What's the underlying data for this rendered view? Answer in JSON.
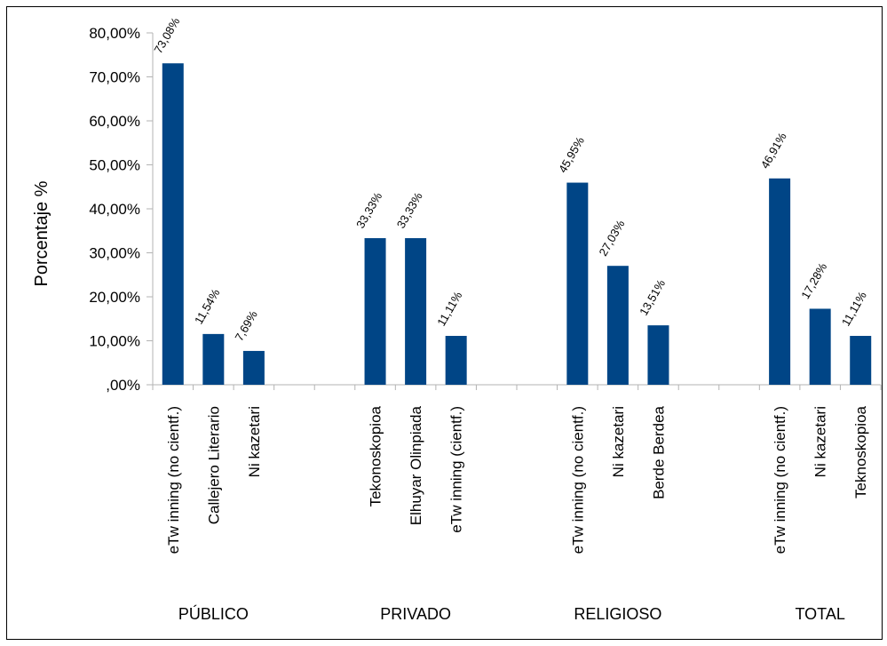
{
  "chart_data": {
    "type": "bar",
    "title": "",
    "xlabel": "",
    "ylabel": "Porcentaje %",
    "ylim": [
      0,
      80
    ],
    "yticks": [
      "80,00%",
      "70,00%",
      "60,00%",
      "50,00%",
      "40,00%",
      "30,00%",
      "20,00%",
      "10,00%",
      ",00%"
    ],
    "legend": "none",
    "grid": false,
    "bar_color": "#004586",
    "groups": [
      {
        "name": "PÚBLICO",
        "categories": [
          "eTw inning (no cientf.)",
          "Callejero Literario",
          "Ni kazetari"
        ],
        "values": [
          73.08,
          11.54,
          7.69
        ],
        "labels": [
          "73,08%",
          "11,54%",
          "7,69%"
        ]
      },
      {
        "name": "PRIVADO",
        "categories": [
          "Tekonoskopioa",
          "Elhuyar Olinpiada",
          "eTw inning (cientf.)"
        ],
        "values": [
          33.33,
          33.33,
          11.11
        ],
        "labels": [
          "33,33%",
          "33,33%",
          "11,11%"
        ]
      },
      {
        "name": "RELIGIOSO",
        "categories": [
          "eTw inning (no cientf.)",
          "Ni kazetari",
          "Berde Berdea"
        ],
        "values": [
          45.95,
          27.03,
          13.51
        ],
        "labels": [
          "45,95%",
          "27,03%",
          "13,51%"
        ]
      },
      {
        "name": "TOTAL",
        "categories": [
          "eTw inning (no cientf.)",
          "Ni kazetari",
          "Teknoskopioa"
        ],
        "values": [
          46.91,
          17.28,
          11.11
        ],
        "labels": [
          "46,91%",
          "17,28%",
          "11,11%"
        ]
      }
    ]
  }
}
